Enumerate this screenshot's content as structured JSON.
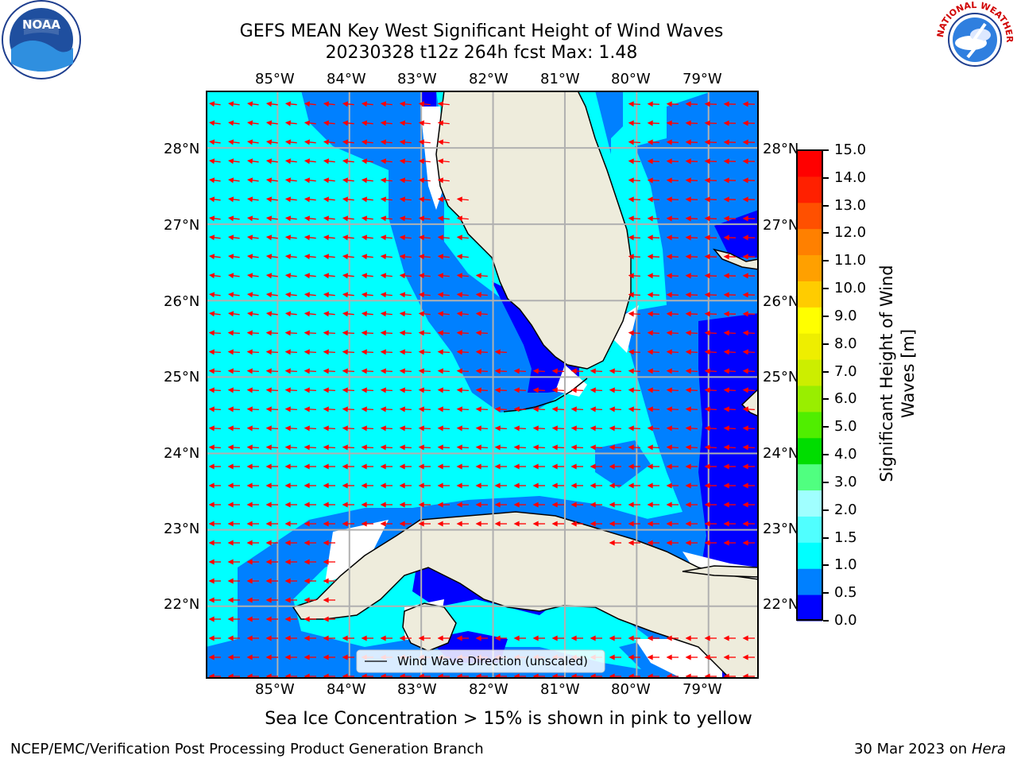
{
  "title": {
    "line1": "GEFS MEAN Key West Significant Height of Wind Waves",
    "line2": "20230328 t12z 264h fcst   Max: 1.48"
  },
  "map": {
    "lon_labels": [
      "85°W",
      "84°W",
      "83°W",
      "82°W",
      "81°W",
      "80°W",
      "79°W"
    ],
    "lat_labels": [
      "28°N",
      "27°N",
      "26°N",
      "25°N",
      "24°N",
      "23°N",
      "22°N"
    ],
    "lon_range": [
      -86.0,
      -78.3
    ],
    "lat_range": [
      21.05,
      28.75
    ],
    "legend_label": "Wind Wave Direction (unscaled)",
    "land_color": "#eeecdc",
    "arrow_color": "#ff0000"
  },
  "colorbar": {
    "label_line1": "Significant Height of Wind",
    "label_line2": "Waves [m]",
    "tick_labels": [
      "0.0",
      "0.5",
      "1.0",
      "1.5",
      "2.0",
      "3.0",
      "4.0",
      "5.0",
      "6.0",
      "7.0",
      "8.0",
      "9.0",
      "10.0",
      "11.0",
      "12.0",
      "13.0",
      "14.0",
      "15.0"
    ],
    "colors": [
      "#0000ff",
      "#0080ff",
      "#00ffff",
      "#50ffff",
      "#a0ffff",
      "#50ff80",
      "#00dd00",
      "#50ee00",
      "#99ee00",
      "#ccee00",
      "#eeee00",
      "#ffff00",
      "#ffcc00",
      "#ffa000",
      "#ff8000",
      "#ff5000",
      "#ff2000",
      "#ff0000"
    ]
  },
  "logos": {
    "noaa_text": "NOAA",
    "nws_text": "NATIONAL WEATHER SERVICE"
  },
  "footer": {
    "sea_ice_note": "Sea Ice Concentration > 15% is shown in pink to yellow",
    "branch": "NCEP/EMC/Verification Post Processing Product Generation Branch",
    "date": "30 Mar 2023 on",
    "machine": "Hera"
  }
}
